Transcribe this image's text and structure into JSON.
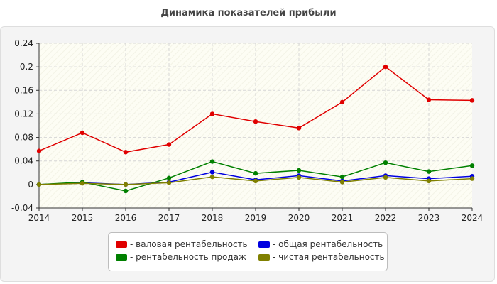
{
  "chart_data": {
    "type": "line",
    "title": "Динамика показателей прибыли",
    "x": [
      "2014",
      "2015",
      "2016",
      "2017",
      "2018",
      "2019",
      "2020",
      "2021",
      "2022",
      "2023",
      "2024"
    ],
    "ylim": [
      -0.04,
      0.24
    ],
    "yticks": [
      "-0.04",
      "0",
      "0.04",
      "0.08",
      "0.12",
      "0.16",
      "0.2",
      "0.24"
    ],
    "grid": true,
    "legend_position": "bottom",
    "series": [
      {
        "name": "- валовая рентабельность",
        "color": "#e00000",
        "values": [
          0.057,
          0.088,
          0.055,
          0.068,
          0.12,
          0.107,
          0.096,
          0.14,
          0.2,
          0.144,
          0.143
        ]
      },
      {
        "name": "- общая рентабельность",
        "color": "#0000e0",
        "values": [
          0.0,
          0.003,
          0.0,
          0.004,
          0.021,
          0.008,
          0.015,
          0.006,
          0.015,
          0.01,
          0.014
        ]
      },
      {
        "name": "- рентабельность продаж",
        "color": "#008000",
        "values": [
          0.0,
          0.004,
          -0.011,
          0.011,
          0.039,
          0.019,
          0.024,
          0.013,
          0.037,
          0.022,
          0.032
        ]
      },
      {
        "name": "- чистая рентабельность",
        "color": "#808000",
        "values": [
          0.0,
          0.002,
          0.0,
          0.003,
          0.013,
          0.006,
          0.012,
          0.004,
          0.012,
          0.006,
          0.01
        ]
      }
    ]
  }
}
